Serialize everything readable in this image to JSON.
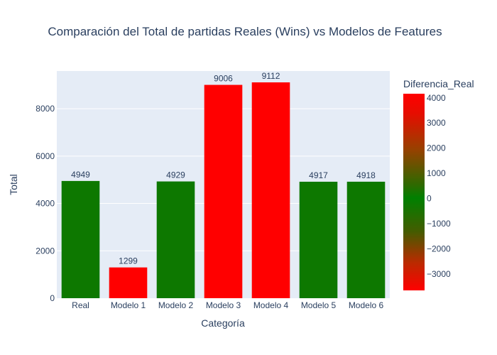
{
  "chart_data": {
    "type": "bar",
    "title": "Comparación del Total de partidas Reales (Wins) vs Modelos de Features",
    "xlabel": "Categoría",
    "ylabel": "Total",
    "categories": [
      "Real",
      "Modelo 1",
      "Modelo 2",
      "Modelo 3",
      "Modelo 4",
      "Modelo 5",
      "Modelo 6"
    ],
    "values": [
      4949,
      1299,
      4929,
      9006,
      9112,
      4917,
      4918
    ],
    "color_values": [
      0,
      -3650,
      -20,
      4057,
      4163,
      -32,
      -31
    ],
    "ylim": [
      0,
      9592
    ],
    "yticks": [
      0,
      2000,
      4000,
      6000,
      8000
    ],
    "grid": true,
    "colorbar": {
      "title": "Diferencia_Real",
      "range": [
        -3650,
        4163
      ],
      "ticks": [
        4000,
        3000,
        2000,
        1000,
        0,
        -1000,
        -2000,
        -3000
      ],
      "colors": [
        "#ff0000",
        "#008000",
        "#ff0000"
      ]
    },
    "colors": {
      "plot_bg": "#e5ecf6",
      "text": "#2a3f5f",
      "red": "#ff0000",
      "green": "#0d7800"
    }
  }
}
